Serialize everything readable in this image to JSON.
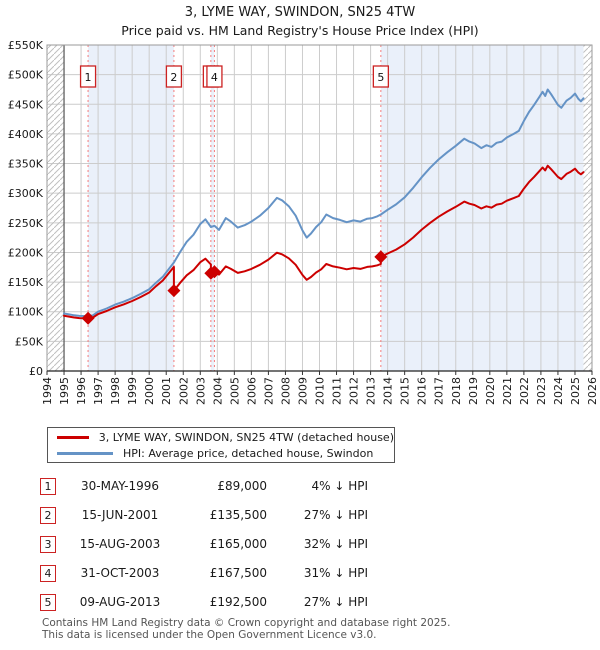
{
  "title": {
    "line1": "3, LYME WAY, SWINDON, SN25 4TW",
    "line2": "Price paid vs. HM Land Registry's House Price Index (HPI)"
  },
  "legend": {
    "items": [
      {
        "label": "3, LYME WAY, SWINDON, SN25 4TW (detached house)",
        "color": "#cc0000"
      },
      {
        "label": "HPI: Average price, detached house, Swindon",
        "color": "#6593c6"
      }
    ]
  },
  "transactions": {
    "rows": [
      {
        "num": "1",
        "date": "30-MAY-1996",
        "price": "£89,000",
        "hpi": "4% ↓ HPI"
      },
      {
        "num": "2",
        "date": "15-JUN-2001",
        "price": "£135,500",
        "hpi": "27% ↓ HPI"
      },
      {
        "num": "3",
        "date": "15-AUG-2003",
        "price": "£165,000",
        "hpi": "32% ↓ HPI"
      },
      {
        "num": "4",
        "date": "31-OCT-2003",
        "price": "£167,500",
        "hpi": "31% ↓ HPI"
      },
      {
        "num": "5",
        "date": "09-AUG-2013",
        "price": "£192,500",
        "hpi": "27% ↓ HPI"
      }
    ]
  },
  "footer": {
    "line1": "Contains HM Land Registry data © Crown copyright and database right 2025.",
    "line2": "This data is licensed under the Open Government Licence v3.0."
  },
  "chart_data": {
    "type": "line",
    "title": "3, LYME WAY, SWINDON, SN25 4TW",
    "subtitle": "Price paid vs. HM Land Registry's House Price Index (HPI)",
    "unit": "GBP thousands",
    "x_range": [
      1994,
      2026
    ],
    "y_range": [
      0,
      550
    ],
    "grid": true,
    "y_tick_labels": [
      "£0",
      "£50K",
      "£100K",
      "£150K",
      "£200K",
      "£250K",
      "£300K",
      "£350K",
      "£400K",
      "£450K",
      "£500K",
      "£550K"
    ],
    "x_tick_labels": [
      "1994",
      "1995",
      "1996",
      "1997",
      "1998",
      "1999",
      "2000",
      "2001",
      "2002",
      "2003",
      "2004",
      "2005",
      "2006",
      "2007",
      "2008",
      "2009",
      "2010",
      "2011",
      "2012",
      "2013",
      "2014",
      "2015",
      "2016",
      "2017",
      "2018",
      "2019",
      "2020",
      "2021",
      "2022",
      "2023",
      "2024",
      "2025",
      "2026"
    ],
    "colors": {
      "price_line": "#cc0000",
      "hpi_line": "#6593c6",
      "band": "#eaf0fa",
      "vline": "#f47c7c",
      "marker_box_border": "#cc2222",
      "grid": "#cccccc",
      "hatch": "#c0c0c0",
      "frame": "#999999"
    },
    "bands": [
      [
        1996.411,
        2001.452
      ],
      [
        2003.621,
        2003.831
      ],
      [
        2013.602,
        2026
      ]
    ],
    "hatch_regions": [
      [
        1994,
        1995
      ],
      [
        2025.5,
        2026
      ]
    ],
    "data_start_year": 1995,
    "sale_lines": [
      1996.411,
      2001.452,
      2003.621,
      2003.831,
      2013.602
    ],
    "markers": [
      {
        "n": "1",
        "year": 1996.411,
        "value": 89,
        "date": "30-MAY-1996",
        "price_gbp": 89000
      },
      {
        "n": "2",
        "year": 2001.452,
        "value": 135.5,
        "date": "15-JUN-2001",
        "price_gbp": 135500
      },
      {
        "n": "3",
        "year": 2003.621,
        "value": 165,
        "date": "15-AUG-2003",
        "price_gbp": 165000
      },
      {
        "n": "4",
        "year": 2003.831,
        "value": 167.5,
        "date": "31-OCT-2003",
        "price_gbp": 167500
      },
      {
        "n": "5",
        "year": 2013.602,
        "value": 192.5,
        "date": "09-AUG-2013",
        "price_gbp": 192500
      }
    ],
    "series": [
      {
        "name": "3, LYME WAY, SWINDON, SN25 4TW (detached house)",
        "color": "#cc0000",
        "points": [
          [
            1995.0,
            93.1
          ],
          [
            1995.3,
            91.7
          ],
          [
            1995.6,
            90.2
          ],
          [
            1995.9,
            89.3
          ],
          [
            1996.2,
            89.1
          ],
          [
            1996.411,
            89
          ],
          [
            1996.7,
            90.2
          ],
          [
            1997.0,
            96
          ],
          [
            1997.5,
            101.3
          ],
          [
            1998.0,
            107.5
          ],
          [
            1998.5,
            112.3
          ],
          [
            1999.0,
            118.1
          ],
          [
            1999.5,
            124.8
          ],
          [
            2000.0,
            132.5
          ],
          [
            2000.4,
            143
          ],
          [
            2000.8,
            152.6
          ],
          [
            2001.1,
            163.2
          ],
          [
            2001.452,
            175.7
          ],
          [
            2001.452,
            135.5
          ],
          [
            2001.8,
            148.1
          ],
          [
            2002.2,
            161.4
          ],
          [
            2002.6,
            170.3
          ],
          [
            2003.0,
            183.6
          ],
          [
            2003.3,
            189.5
          ],
          [
            2003.621,
            179.9
          ],
          [
            2003.621,
            165
          ],
          [
            2003.831,
            166.4
          ],
          [
            2003.831,
            167.5
          ],
          [
            2004.1,
            162.7
          ],
          [
            2004.5,
            176.4
          ],
          [
            2004.8,
            172.3
          ],
          [
            2005.2,
            165.5
          ],
          [
            2005.6,
            168.2
          ],
          [
            2006.0,
            172.3
          ],
          [
            2006.5,
            179.1
          ],
          [
            2007.0,
            188
          ],
          [
            2007.5,
            199.6
          ],
          [
            2007.8,
            196.9
          ],
          [
            2008.2,
            190.1
          ],
          [
            2008.6,
            179.1
          ],
          [
            2009.0,
            162
          ],
          [
            2009.25,
            153.8
          ],
          [
            2009.5,
            158.6
          ],
          [
            2009.8,
            166.1
          ],
          [
            2010.1,
            171.6
          ],
          [
            2010.4,
            180.5
          ],
          [
            2010.8,
            176.4
          ],
          [
            2011.2,
            174.3
          ],
          [
            2011.6,
            171.6
          ],
          [
            2012.0,
            173.7
          ],
          [
            2012.4,
            172.3
          ],
          [
            2012.8,
            175.7
          ],
          [
            2013.1,
            176.4
          ],
          [
            2013.4,
            178.4
          ],
          [
            2013.602,
            180.5
          ],
          [
            2013.602,
            192.5
          ],
          [
            2014.0,
            198.3
          ],
          [
            2014.5,
            204.9
          ],
          [
            2015.0,
            213.7
          ],
          [
            2015.5,
            225.3
          ],
          [
            2016.0,
            238.5
          ],
          [
            2016.5,
            250.1
          ],
          [
            2017.0,
            260.3
          ],
          [
            2017.5,
            269.1
          ],
          [
            2018.0,
            277.1
          ],
          [
            2018.5,
            285.8
          ],
          [
            2018.8,
            282.2
          ],
          [
            2019.1,
            280
          ],
          [
            2019.5,
            274.2
          ],
          [
            2019.8,
            277.8
          ],
          [
            2020.1,
            275.6
          ],
          [
            2020.4,
            280.7
          ],
          [
            2020.7,
            282.2
          ],
          [
            2021.0,
            287.3
          ],
          [
            2021.4,
            291.7
          ],
          [
            2021.7,
            295.3
          ],
          [
            2022.0,
            307.7
          ],
          [
            2022.3,
            318.7
          ],
          [
            2022.6,
            327.4
          ],
          [
            2022.9,
            336.9
          ],
          [
            2023.1,
            343.4
          ],
          [
            2023.25,
            338.4
          ],
          [
            2023.4,
            346.4
          ],
          [
            2023.6,
            340.5
          ],
          [
            2023.8,
            334
          ],
          [
            2024.0,
            327.4
          ],
          [
            2024.2,
            323.8
          ],
          [
            2024.5,
            332.5
          ],
          [
            2024.75,
            336.2
          ],
          [
            2025.0,
            341.3
          ],
          [
            2025.2,
            334.7
          ],
          [
            2025.35,
            331.8
          ],
          [
            2025.5,
            335.4
          ]
        ]
      },
      {
        "name": "HPI: Average price, detached house, Swindon",
        "color": "#6593c6",
        "points": [
          [
            1995.0,
            97
          ],
          [
            1995.3,
            95.5
          ],
          [
            1995.6,
            94
          ],
          [
            1995.9,
            93
          ],
          [
            1996.2,
            92.8
          ],
          [
            1996.411,
            92.7
          ],
          [
            1996.7,
            94
          ],
          [
            1997.0,
            100
          ],
          [
            1997.5,
            105.5
          ],
          [
            1998.0,
            112
          ],
          [
            1998.5,
            117
          ],
          [
            1999.0,
            123
          ],
          [
            1999.5,
            130
          ],
          [
            2000.0,
            138
          ],
          [
            2000.4,
            149
          ],
          [
            2000.8,
            159
          ],
          [
            2001.1,
            170
          ],
          [
            2001.452,
            183
          ],
          [
            2001.8,
            200
          ],
          [
            2002.2,
            218
          ],
          [
            2002.6,
            230
          ],
          [
            2003.0,
            248
          ],
          [
            2003.3,
            256
          ],
          [
            2003.621,
            243
          ],
          [
            2003.831,
            245
          ],
          [
            2004.1,
            238
          ],
          [
            2004.5,
            258
          ],
          [
            2004.8,
            252
          ],
          [
            2005.2,
            242
          ],
          [
            2005.6,
            246
          ],
          [
            2006.0,
            252
          ],
          [
            2006.5,
            262
          ],
          [
            2007.0,
            275
          ],
          [
            2007.5,
            292
          ],
          [
            2007.8,
            288
          ],
          [
            2008.2,
            278
          ],
          [
            2008.6,
            262
          ],
          [
            2009.0,
            237
          ],
          [
            2009.25,
            225
          ],
          [
            2009.5,
            232
          ],
          [
            2009.8,
            243
          ],
          [
            2010.1,
            251
          ],
          [
            2010.4,
            264
          ],
          [
            2010.8,
            258
          ],
          [
            2011.2,
            255
          ],
          [
            2011.6,
            251
          ],
          [
            2012.0,
            254
          ],
          [
            2012.4,
            252
          ],
          [
            2012.8,
            257
          ],
          [
            2013.1,
            258
          ],
          [
            2013.4,
            261
          ],
          [
            2013.602,
            264
          ],
          [
            2014.0,
            272
          ],
          [
            2014.5,
            281
          ],
          [
            2015.0,
            293
          ],
          [
            2015.5,
            309
          ],
          [
            2016.0,
            327
          ],
          [
            2016.5,
            343
          ],
          [
            2017.0,
            357
          ],
          [
            2017.5,
            369
          ],
          [
            2018.0,
            380
          ],
          [
            2018.5,
            392
          ],
          [
            2018.8,
            387
          ],
          [
            2019.1,
            384
          ],
          [
            2019.5,
            376
          ],
          [
            2019.8,
            381
          ],
          [
            2020.1,
            378
          ],
          [
            2020.4,
            385
          ],
          [
            2020.7,
            387
          ],
          [
            2021.0,
            394
          ],
          [
            2021.4,
            400
          ],
          [
            2021.7,
            405
          ],
          [
            2022.0,
            422
          ],
          [
            2022.3,
            437
          ],
          [
            2022.6,
            449
          ],
          [
            2022.9,
            462
          ],
          [
            2023.1,
            471
          ],
          [
            2023.25,
            464
          ],
          [
            2023.4,
            475
          ],
          [
            2023.6,
            467
          ],
          [
            2023.8,
            458
          ],
          [
            2024.0,
            449
          ],
          [
            2024.2,
            444
          ],
          [
            2024.5,
            456
          ],
          [
            2024.75,
            461
          ],
          [
            2025.0,
            468
          ],
          [
            2025.2,
            459
          ],
          [
            2025.35,
            455
          ],
          [
            2025.5,
            460
          ]
        ]
      }
    ],
    "legend_position": "bottom"
  }
}
